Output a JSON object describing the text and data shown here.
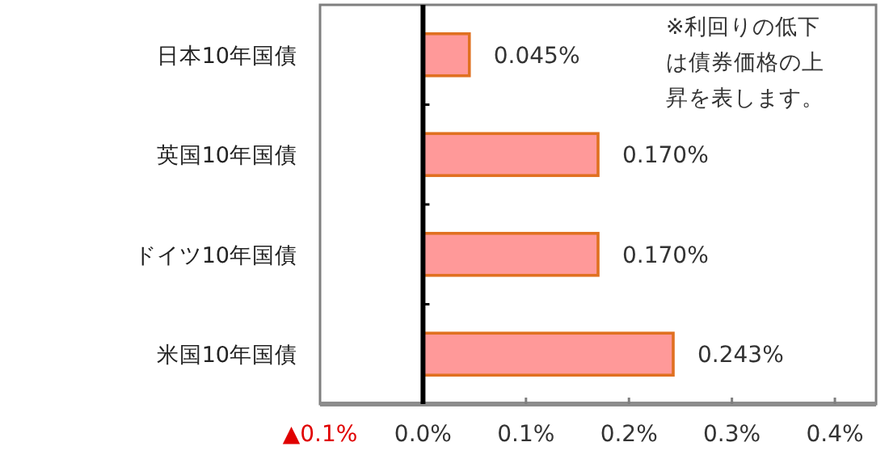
{
  "chart_data": {
    "type": "bar",
    "orientation": "horizontal",
    "categories": [
      "日本10年国債",
      "英国10年国債",
      "ドイツ10年国債",
      "米国10年国債"
    ],
    "values": [
      0.045,
      0.17,
      0.17,
      0.243
    ],
    "value_labels": [
      "0.045%",
      "0.170%",
      "0.170%",
      "0.243%"
    ],
    "color": "#ff9999",
    "xlim": [
      -0.1,
      0.44
    ],
    "xticks": [
      {
        "value": -0.1,
        "label": "▲0.1%"
      },
      {
        "value": 0,
        "label": "0.0%"
      },
      {
        "value": 0.1,
        "label": "0.1%"
      },
      {
        "value": 0.2,
        "label": "0.2%"
      },
      {
        "value": 0.3,
        "label": "0.3%"
      },
      {
        "value": 0.4,
        "label": "0.4%"
      }
    ],
    "annotations": [
      "※利回りの低下は債券価格の上昇を表します。"
    ]
  }
}
